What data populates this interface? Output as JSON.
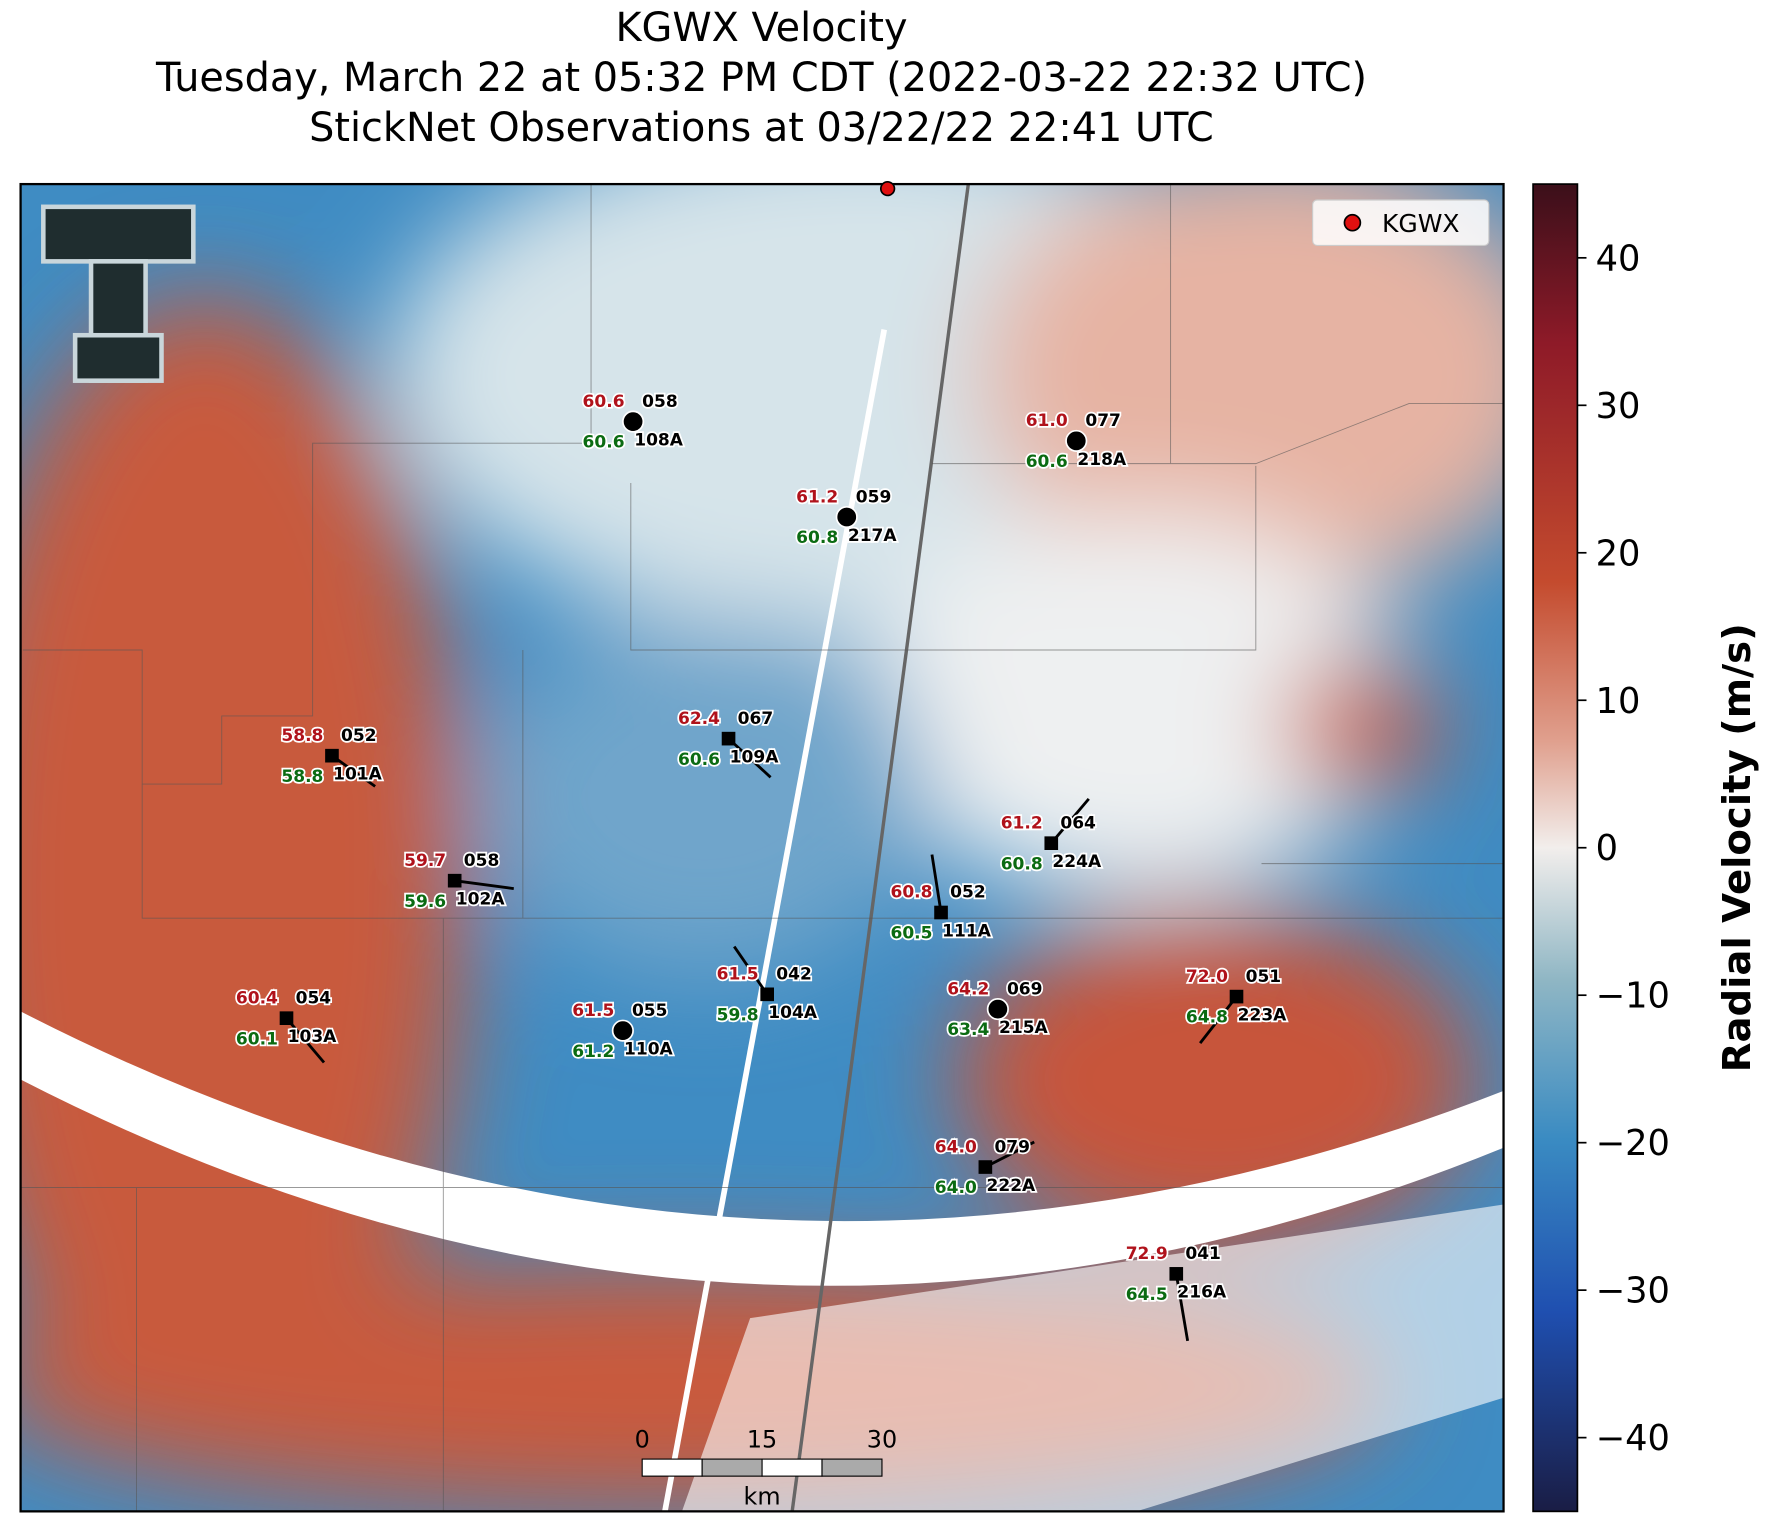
{
  "title": [
    "KGWX Velocity",
    "Tuesday, March 22 at 05:32 PM CDT (2022-03-22 22:32 UTC)",
    "StickNet Observations at 03/22/22 22:41 UTC"
  ],
  "legend": [
    "KGWX"
  ],
  "colorbar": {
    "label": "Radial Velocity (m/s)",
    "lim": [
      -45,
      45
    ],
    "ticks": [
      {
        "value": -40,
        "label": "−40"
      },
      {
        "value": -30,
        "label": "−30"
      },
      {
        "value": -20,
        "label": "−20"
      },
      {
        "value": -10,
        "label": "−10"
      },
      0,
      10,
      20,
      30,
      40
    ]
  },
  "scale_bar": {
    "ticks": [
      0,
      15,
      30
    ],
    "unit": "km"
  },
  "stations": [
    {
      "id": "108A",
      "temp": "60.6",
      "dewpoint": "60.6",
      "code": "058"
    },
    {
      "id": "218A",
      "temp": "61.0",
      "dewpoint": "60.6",
      "code": "077"
    },
    {
      "id": "217A",
      "temp": "61.2",
      "dewpoint": "60.8",
      "code": "059"
    },
    {
      "id": "101A",
      "temp": "58.8",
      "dewpoint": "58.8",
      "code": "052"
    },
    {
      "id": "109A",
      "temp": "62.4",
      "dewpoint": "60.6",
      "code": "067"
    },
    {
      "id": "224A",
      "temp": "61.2",
      "dewpoint": "60.8",
      "code": "064"
    },
    {
      "id": "102A",
      "temp": "59.7",
      "dewpoint": "59.6",
      "code": "058"
    },
    {
      "id": "111A",
      "temp": "60.8",
      "dewpoint": "60.5",
      "code": "052"
    },
    {
      "id": "104A",
      "temp": "61.5",
      "dewpoint": "59.8",
      "code": "042"
    },
    {
      "id": "215A",
      "temp": "64.2",
      "dewpoint": "63.4",
      "code": "069"
    },
    {
      "id": "223A",
      "temp": "72.0",
      "dewpoint": "64.8",
      "code": "051"
    },
    {
      "id": "103A",
      "temp": "60.4",
      "dewpoint": "60.1",
      "code": "054"
    },
    {
      "id": "110A",
      "temp": "61.5",
      "dewpoint": "61.2",
      "code": "055"
    },
    {
      "id": "222A",
      "temp": "64.0",
      "dewpoint": "64.0",
      "code": "079"
    },
    {
      "id": "216A",
      "temp": "72.9",
      "dewpoint": "64.5",
      "code": "041"
    }
  ]
}
